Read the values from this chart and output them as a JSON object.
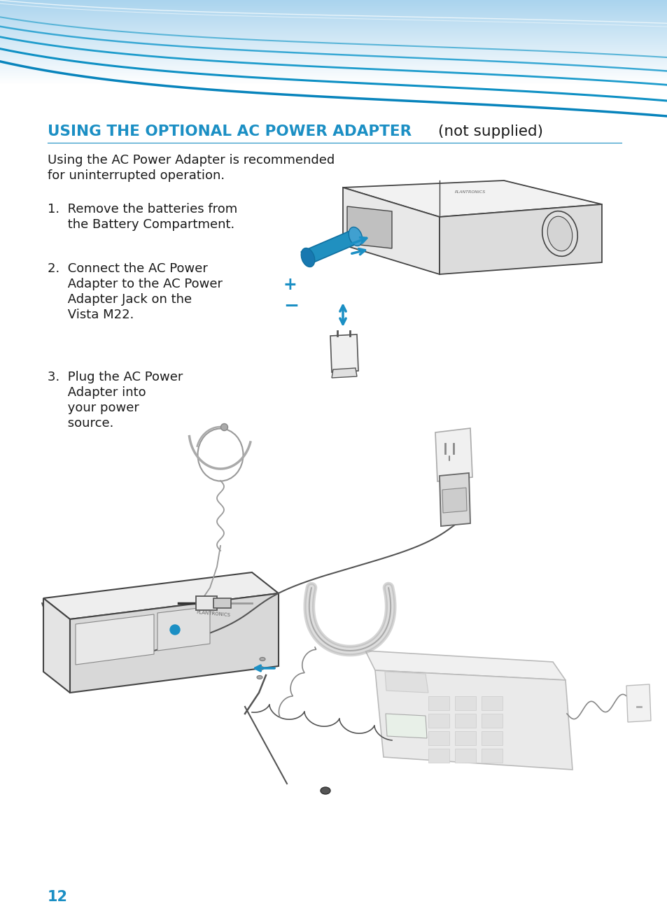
{
  "background_color": "#ffffff",
  "title_blue": "#1b8fc4",
  "title_bold": "USING THE OPTIONAL AC POWER ADAPTER",
  "title_normal": "(not supplied)",
  "body_text_1": "Using the AC Power Adapter is recommended",
  "body_text_2": "for uninterrupted operation.",
  "step1_a": "1.  Remove the batteries from",
  "step1_b": "     the Battery Compartment.",
  "step2_a": "2.  Connect the AC Power",
  "step2_b": "     Adapter to the AC Power",
  "step2_c": "     Adapter Jack on the",
  "step2_d": "     Vista M22.",
  "step3_a": "3.  Plug the AC Power",
  "step3_b": "     Adapter into",
  "step3_c": "     your power",
  "step3_d": "     source.",
  "page_number": "12",
  "arrow_color": "#1b8fc4",
  "text_color": "#1a1a1a",
  "curve_colors": [
    "#c0dff0",
    "#8ecce8",
    "#5ab8e0",
    "#2ea4d8",
    "#1090c8"
  ],
  "bg_top_color": "#b0d8f0",
  "plus_minus_color": "#1b8fc4",
  "line_color": "#444444",
  "light_line": "#aaaaaa"
}
